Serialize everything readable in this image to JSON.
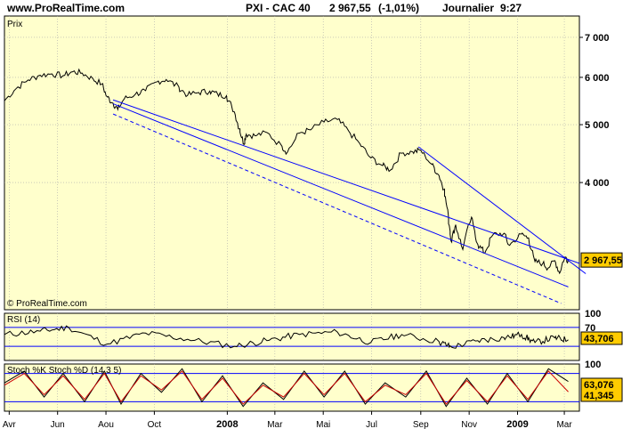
{
  "header": {
    "site": "www.ProRealTime.com",
    "instrument": "PXI - CAC 40",
    "last_price": "2 967,55",
    "change": "(-1,01%)",
    "period": "Journalier",
    "time": "9:27"
  },
  "colors": {
    "panel_bg": "#ffffcc",
    "frame": "#000000",
    "grid": "#aaaaaa",
    "price_line": "#000000",
    "trendline": "#0000ff",
    "label_bg": "#ffcc00",
    "stoch_d": "#cc0000"
  },
  "chart_data": [
    {
      "type": "line",
      "panel": "price",
      "title": "Prix",
      "watermark": "© ProRealTime.com",
      "y_scale": "log",
      "ylim": [
        2450,
        7600
      ],
      "yticks": [
        7000,
        6000,
        5000,
        4000
      ],
      "ytick_labels": [
        "7 000",
        "6 000",
        "5 000",
        "4 000"
      ],
      "last_value_label": "2 967,55",
      "last_value": 2967.55,
      "xlim": [
        "2007-03-26",
        "2009-03-20"
      ],
      "series": [
        {
          "x": [
            "2007-03-26",
            "2007-04-10",
            "2007-04-25",
            "2007-05-10",
            "2007-05-25",
            "2007-06-08",
            "2007-06-20",
            "2007-07-02",
            "2007-07-16",
            "2007-07-27",
            "2007-08-03",
            "2007-08-10",
            "2007-08-16",
            "2007-08-24",
            "2007-09-07",
            "2007-09-20",
            "2007-10-05",
            "2007-10-16",
            "2007-11-01",
            "2007-11-12",
            "2007-11-26",
            "2007-12-10",
            "2007-12-20",
            "2007-12-31",
            "2008-01-10",
            "2008-01-17",
            "2008-01-22",
            "2008-01-25",
            "2008-02-05",
            "2008-02-20",
            "2008-03-10",
            "2008-03-17",
            "2008-04-01",
            "2008-04-15",
            "2008-05-02",
            "2008-05-19",
            "2008-06-02",
            "2008-06-16",
            "2008-06-30",
            "2008-07-15",
            "2008-07-25",
            "2008-08-08",
            "2008-08-22",
            "2008-09-01",
            "2008-09-15",
            "2008-09-24",
            "2008-10-01",
            "2008-10-06",
            "2008-10-10",
            "2008-10-15",
            "2008-10-24",
            "2008-11-04",
            "2008-11-12",
            "2008-11-21",
            "2008-12-01",
            "2008-12-15",
            "2008-12-22",
            "2009-01-06",
            "2009-01-15",
            "2009-01-23",
            "2009-02-02",
            "2009-02-09",
            "2009-02-17",
            "2009-02-23",
            "2009-03-02",
            "2009-03-06"
          ],
          "y": [
            5480,
            5750,
            5940,
            6050,
            6080,
            6040,
            6130,
            6100,
            5960,
            5850,
            5560,
            5430,
            5300,
            5520,
            5620,
            5700,
            5900,
            5950,
            5780,
            5600,
            5660,
            5690,
            5620,
            5590,
            5250,
            4920,
            4640,
            4820,
            4790,
            4850,
            4600,
            4500,
            4840,
            4900,
            5050,
            5100,
            4880,
            4650,
            4400,
            4270,
            4200,
            4480,
            4500,
            4530,
            4290,
            4110,
            3900,
            3500,
            3180,
            3400,
            3090,
            3500,
            3150,
            3050,
            3270,
            3290,
            3140,
            3280,
            3230,
            2950,
            2930,
            2880,
            2960,
            2820,
            3000,
            2968
          ]
        }
      ],
      "trendlines": [
        {
          "style": "solid",
          "points": [
            [
              "2007-08-10",
              5500
            ],
            [
              "2009-03-20",
              2930
            ]
          ]
        },
        {
          "style": "solid",
          "points": [
            [
              "2007-08-10",
              5420
            ],
            [
              "2009-03-06",
              2675
            ]
          ]
        },
        {
          "style": "dashed",
          "points": [
            [
              "2007-08-10",
              5210
            ],
            [
              "2009-02-25",
              2510
            ]
          ]
        },
        {
          "style": "solid",
          "points": [
            [
              "2008-08-29",
              4590
            ],
            [
              "2009-03-28",
              2815
            ]
          ]
        }
      ]
    },
    {
      "type": "line",
      "panel": "rsi",
      "title": "RSI (14)",
      "ylim": [
        0,
        100
      ],
      "yticks": [
        100,
        70
      ],
      "ytick_labels": [
        "100",
        "70"
      ],
      "reference_lines": [
        70,
        30
      ],
      "last_value_label": "43,706",
      "series": [
        {
          "x": [
            "2007-03-26",
            "2007-05-10",
            "2007-06-15",
            "2007-08-03",
            "2007-09-20",
            "2007-11-12",
            "2008-01-10",
            "2008-02-20",
            "2008-04-01",
            "2008-05-19",
            "2008-06-30",
            "2008-08-08",
            "2008-09-24",
            "2008-10-10",
            "2008-11-12",
            "2008-12-15",
            "2009-01-06",
            "2009-01-23",
            "2009-02-17",
            "2009-03-06"
          ],
          "y": [
            55,
            62,
            70,
            35,
            58,
            45,
            30,
            42,
            55,
            60,
            38,
            55,
            40,
            28,
            42,
            48,
            55,
            38,
            48,
            43.7
          ]
        }
      ]
    },
    {
      "type": "line",
      "panel": "stochastic",
      "title": "Stoch %K  Stoch %D (14 3 5)",
      "legend": [
        "Stoch %K",
        "Stoch %D (14 3 5)"
      ],
      "ylim": [
        0,
        100
      ],
      "yticks": [
        100
      ],
      "ytick_labels": [
        "100"
      ],
      "reference_lines": [
        80,
        20
      ],
      "last_value_labels": [
        "63,076",
        "41,345"
      ],
      "x": [
        "2007-03-26",
        "2007-04-20",
        "2007-05-15",
        "2007-06-08",
        "2007-07-05",
        "2007-07-30",
        "2007-08-20",
        "2007-09-14",
        "2007-10-10",
        "2007-11-05",
        "2007-11-30",
        "2007-12-26",
        "2008-01-21",
        "2008-02-15",
        "2008-03-12",
        "2008-04-07",
        "2008-05-02",
        "2008-05-28",
        "2008-06-23",
        "2008-07-18",
        "2008-08-13",
        "2008-09-08",
        "2008-10-03",
        "2008-10-29",
        "2008-11-24",
        "2008-12-19",
        "2009-01-14",
        "2009-02-09",
        "2009-03-06"
      ],
      "series": [
        {
          "name": "Stoch %K",
          "values": [
            60,
            85,
            30,
            80,
            20,
            85,
            15,
            80,
            40,
            90,
            20,
            75,
            10,
            60,
            25,
            85,
            30,
            85,
            15,
            60,
            30,
            85,
            10,
            70,
            15,
            80,
            20,
            90,
            63
          ]
        },
        {
          "name": "Stoch %D (14 3 5)",
          "values": [
            55,
            80,
            35,
            75,
            25,
            80,
            20,
            75,
            45,
            85,
            25,
            70,
            15,
            55,
            30,
            80,
            35,
            80,
            20,
            55,
            35,
            80,
            15,
            65,
            20,
            75,
            25,
            85,
            41
          ]
        }
      ]
    }
  ],
  "x_axis": {
    "labels": [
      {
        "date": "2007-04-01",
        "text": "Avr",
        "bold": false
      },
      {
        "date": "2007-06-01",
        "text": "Jun",
        "bold": false
      },
      {
        "date": "2007-08-01",
        "text": "Aou",
        "bold": false
      },
      {
        "date": "2007-10-01",
        "text": "Oct",
        "bold": false
      },
      {
        "date": "2008-01-01",
        "text": "2008",
        "bold": true
      },
      {
        "date": "2008-03-01",
        "text": "Mar",
        "bold": false
      },
      {
        "date": "2008-05-01",
        "text": "Mai",
        "bold": false
      },
      {
        "date": "2008-07-01",
        "text": "Jul",
        "bold": false
      },
      {
        "date": "2008-09-01",
        "text": "Sep",
        "bold": false
      },
      {
        "date": "2008-11-01",
        "text": "Nov",
        "bold": false
      },
      {
        "date": "2009-01-01",
        "text": "2009",
        "bold": true
      },
      {
        "date": "2009-03-01",
        "text": "Mar",
        "bold": false
      }
    ]
  }
}
